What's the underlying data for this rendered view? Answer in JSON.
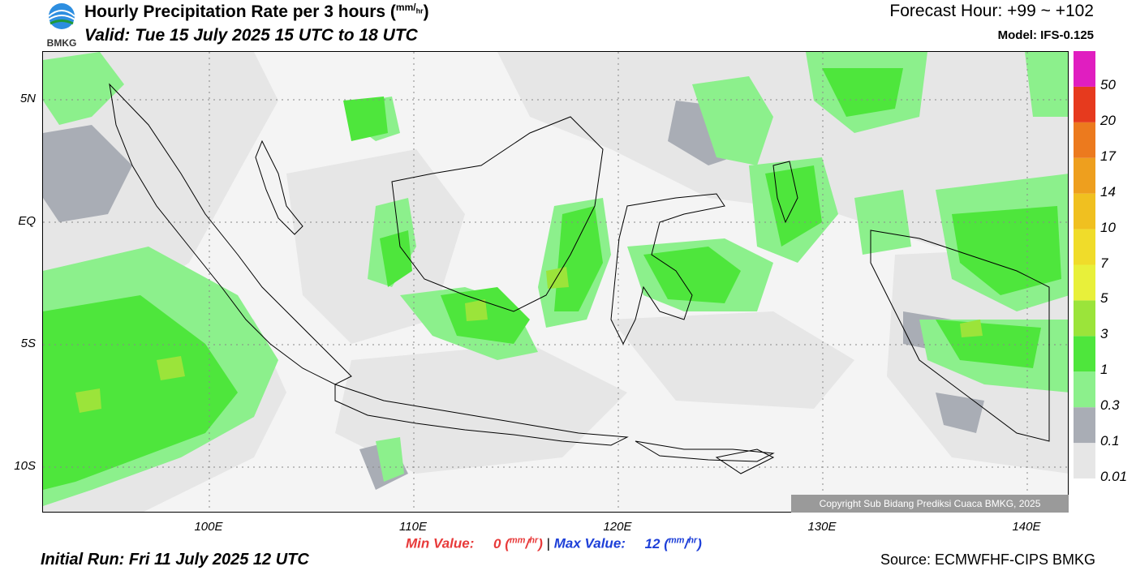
{
  "header": {
    "logo_text": "BMKG",
    "title": "Hourly Precipitation Rate per 3 hours",
    "title_unit_num": "mm",
    "title_unit_den": "hr",
    "valid": "Valid: Tue 15 July 2025 15 UTC to 18 UTC",
    "forecast_hour": "Forecast Hour: +99 ~ +102",
    "model": "Model: IFS-0.125"
  },
  "map": {
    "lat_labels": [
      "5N",
      "EQ",
      "5S",
      "10S"
    ],
    "lon_labels": [
      "100E",
      "110E",
      "120E",
      "130E",
      "140E"
    ],
    "copyright": "Copyright Sub Bidang Prediksi Cuaca BMKG, 2025"
  },
  "legend": {
    "levels": [
      "0.01",
      "0.1",
      "0.3",
      "1",
      "3",
      "5",
      "7",
      "10",
      "14",
      "17",
      "20",
      "50"
    ],
    "colors": [
      "#e6e6e6",
      "#a9adb5",
      "#8cf08c",
      "#4ee63c",
      "#9be43a",
      "#e8f03a",
      "#f0dc2a",
      "#f0c020",
      "#ee9f1e",
      "#ec7a1e",
      "#e63a1e",
      "#e01ec0"
    ]
  },
  "footer": {
    "min_label": "Min Value:",
    "min_value": "0",
    "max_label": "Max Value:",
    "max_value": "12",
    "unit_num": "mm",
    "unit_den": "hr",
    "separator": "|",
    "initial_run": "Initial Run: Fri 11 July 2025 12 UTC",
    "source": "Source: ECMWFHF-CIPS BMKG"
  }
}
